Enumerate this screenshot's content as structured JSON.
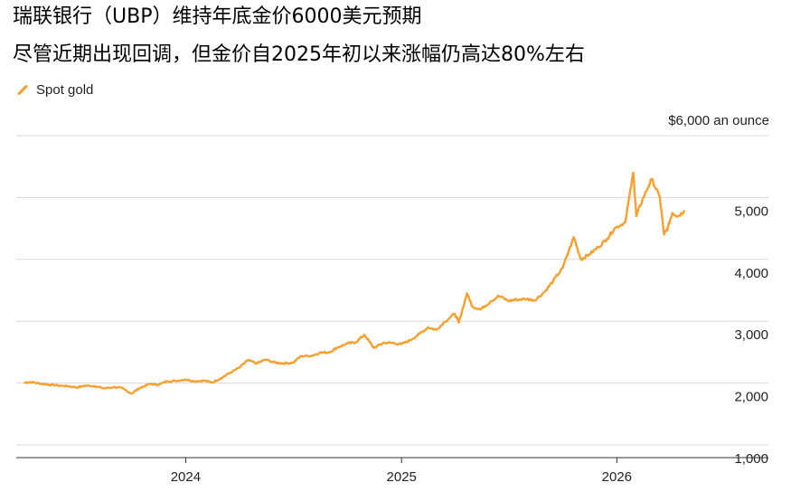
{
  "title_line1": "瑞联银行（UBP）维持年底金价6000美元预期",
  "title_line2": "尽管近期出现回调，但金价自2025年初以来涨幅仍高达80%左右",
  "colors": {
    "series": "#f7a030",
    "grid": "#d9d9d9",
    "axis": "#333333"
  },
  "chart_data": {
    "type": "line",
    "title": "",
    "xlabel": "",
    "ylabel": "",
    "unit_label": "$6,000 an ounce",
    "ylim": [
      1000,
      6000
    ],
    "y_ticks": [
      {
        "value": 6000,
        "label": ""
      },
      {
        "value": 5000,
        "label": "5,000"
      },
      {
        "value": 4000,
        "label": "4,000"
      },
      {
        "value": 3000,
        "label": "3,000"
      },
      {
        "value": 2000,
        "label": "2,000"
      },
      {
        "value": 1000,
        "label": "1,000"
      }
    ],
    "x_range": [
      "2023-04-01",
      "2026-06-15"
    ],
    "x_ticks": [
      {
        "value": "2024-01-01",
        "label": "2024"
      },
      {
        "value": "2025-01-01",
        "label": "2025"
      },
      {
        "value": "2026-01-01",
        "label": "2026"
      }
    ],
    "legend": "top-left",
    "grid": true,
    "series": [
      {
        "name": "Spot gold",
        "points": [
          [
            "2023-04-03",
            2010
          ],
          [
            "2023-04-15",
            2015
          ],
          [
            "2023-05-01",
            1990
          ],
          [
            "2023-05-15",
            1975
          ],
          [
            "2023-06-01",
            1960
          ],
          [
            "2023-06-15",
            1950
          ],
          [
            "2023-07-01",
            1930
          ],
          [
            "2023-07-15",
            1960
          ],
          [
            "2023-08-01",
            1950
          ],
          [
            "2023-08-15",
            1915
          ],
          [
            "2023-09-01",
            1935
          ],
          [
            "2023-09-15",
            1920
          ],
          [
            "2023-10-01",
            1830
          ],
          [
            "2023-10-15",
            1920
          ],
          [
            "2023-11-01",
            1985
          ],
          [
            "2023-11-15",
            1975
          ],
          [
            "2023-12-01",
            2030
          ],
          [
            "2023-12-15",
            2035
          ],
          [
            "2024-01-01",
            2060
          ],
          [
            "2024-01-15",
            2030
          ],
          [
            "2024-02-01",
            2040
          ],
          [
            "2024-02-15",
            2010
          ],
          [
            "2024-03-01",
            2080
          ],
          [
            "2024-03-15",
            2160
          ],
          [
            "2024-04-01",
            2250
          ],
          [
            "2024-04-15",
            2370
          ],
          [
            "2024-05-01",
            2320
          ],
          [
            "2024-05-15",
            2380
          ],
          [
            "2024-06-01",
            2330
          ],
          [
            "2024-06-15",
            2320
          ],
          [
            "2024-07-01",
            2330
          ],
          [
            "2024-07-15",
            2440
          ],
          [
            "2024-08-01",
            2440
          ],
          [
            "2024-08-15",
            2490
          ],
          [
            "2024-09-01",
            2500
          ],
          [
            "2024-09-15",
            2580
          ],
          [
            "2024-10-01",
            2640
          ],
          [
            "2024-10-15",
            2660
          ],
          [
            "2024-10-30",
            2780
          ],
          [
            "2024-11-15",
            2570
          ],
          [
            "2024-12-01",
            2650
          ],
          [
            "2024-12-15",
            2650
          ],
          [
            "2025-01-01",
            2630
          ],
          [
            "2025-01-15",
            2690
          ],
          [
            "2025-02-01",
            2800
          ],
          [
            "2025-02-15",
            2900
          ],
          [
            "2025-03-01",
            2860
          ],
          [
            "2025-03-15",
            2990
          ],
          [
            "2025-04-01",
            3120
          ],
          [
            "2025-04-08",
            2980
          ],
          [
            "2025-04-22",
            3450
          ],
          [
            "2025-05-01",
            3240
          ],
          [
            "2025-05-15",
            3190
          ],
          [
            "2025-06-01",
            3320
          ],
          [
            "2025-06-15",
            3410
          ],
          [
            "2025-07-01",
            3330
          ],
          [
            "2025-07-15",
            3350
          ],
          [
            "2025-08-01",
            3360
          ],
          [
            "2025-08-15",
            3340
          ],
          [
            "2025-09-01",
            3480
          ],
          [
            "2025-09-15",
            3650
          ],
          [
            "2025-10-01",
            3860
          ],
          [
            "2025-10-20",
            4360
          ],
          [
            "2025-11-01",
            4000
          ],
          [
            "2025-11-15",
            4080
          ],
          [
            "2025-12-01",
            4200
          ],
          [
            "2025-12-15",
            4330
          ],
          [
            "2025-12-28",
            4500
          ],
          [
            "2026-01-15",
            4600
          ],
          [
            "2026-01-29",
            5400
          ],
          [
            "2026-02-03",
            4700
          ],
          [
            "2026-02-15",
            5000
          ],
          [
            "2026-03-01",
            5300
          ],
          [
            "2026-03-15",
            5000
          ],
          [
            "2026-03-22",
            4400
          ],
          [
            "2026-03-28",
            4500
          ],
          [
            "2026-04-05",
            4750
          ],
          [
            "2026-04-15",
            4700
          ],
          [
            "2026-04-25",
            4780
          ]
        ]
      }
    ]
  }
}
